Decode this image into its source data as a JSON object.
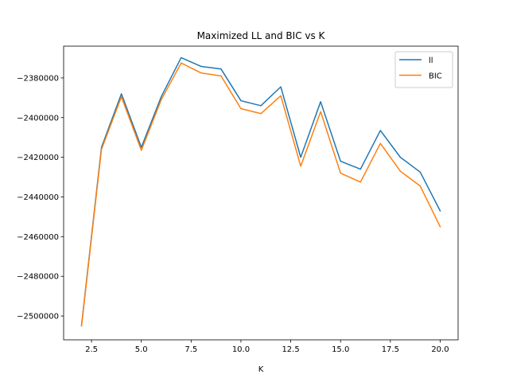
{
  "chart_data": {
    "type": "line",
    "title": "Maximized LL and BIC vs K",
    "xlabel": "K",
    "ylabel": "",
    "xlim": [
      1.1,
      20.9
    ],
    "ylim": [
      -2512000,
      -2364000
    ],
    "xticks": [
      2.5,
      5.0,
      7.5,
      10.0,
      12.5,
      15.0,
      17.5,
      20.0
    ],
    "xtick_labels": [
      "2.5",
      "5.0",
      "7.5",
      "10.0",
      "12.5",
      "15.0",
      "17.5",
      "20.0"
    ],
    "yticks": [
      -2500000,
      -2480000,
      -2460000,
      -2440000,
      -2420000,
      -2400000,
      -2380000
    ],
    "ytick_labels": [
      "−2500000",
      "−2480000",
      "−2460000",
      "−2440000",
      "−2420000",
      "−2400000",
      "−2380000"
    ],
    "grid": false,
    "legend_position": "top-right",
    "x": [
      2,
      3,
      4,
      5,
      6,
      7,
      8,
      9,
      10,
      11,
      12,
      13,
      14,
      15,
      16,
      17,
      18,
      19,
      20
    ],
    "series": [
      {
        "name": "ll",
        "color": "#1f77b4",
        "values": [
          -2504500,
          -2415000,
          -2388000,
          -2415000,
          -2389500,
          -2369800,
          -2374200,
          -2375500,
          -2391500,
          -2394000,
          -2384500,
          -2420000,
          -2392000,
          -2422000,
          -2426000,
          -2406500,
          -2420000,
          -2427500,
          -2447000
        ]
      },
      {
        "name": "BIC",
        "color": "#ff7f0e",
        "values": [
          -2505000,
          -2416000,
          -2389500,
          -2416500,
          -2391000,
          -2372500,
          -2377500,
          -2379000,
          -2395500,
          -2398000,
          -2389000,
          -2424500,
          -2397000,
          -2428000,
          -2432500,
          -2413000,
          -2427000,
          -2434500,
          -2455000
        ]
      }
    ]
  }
}
